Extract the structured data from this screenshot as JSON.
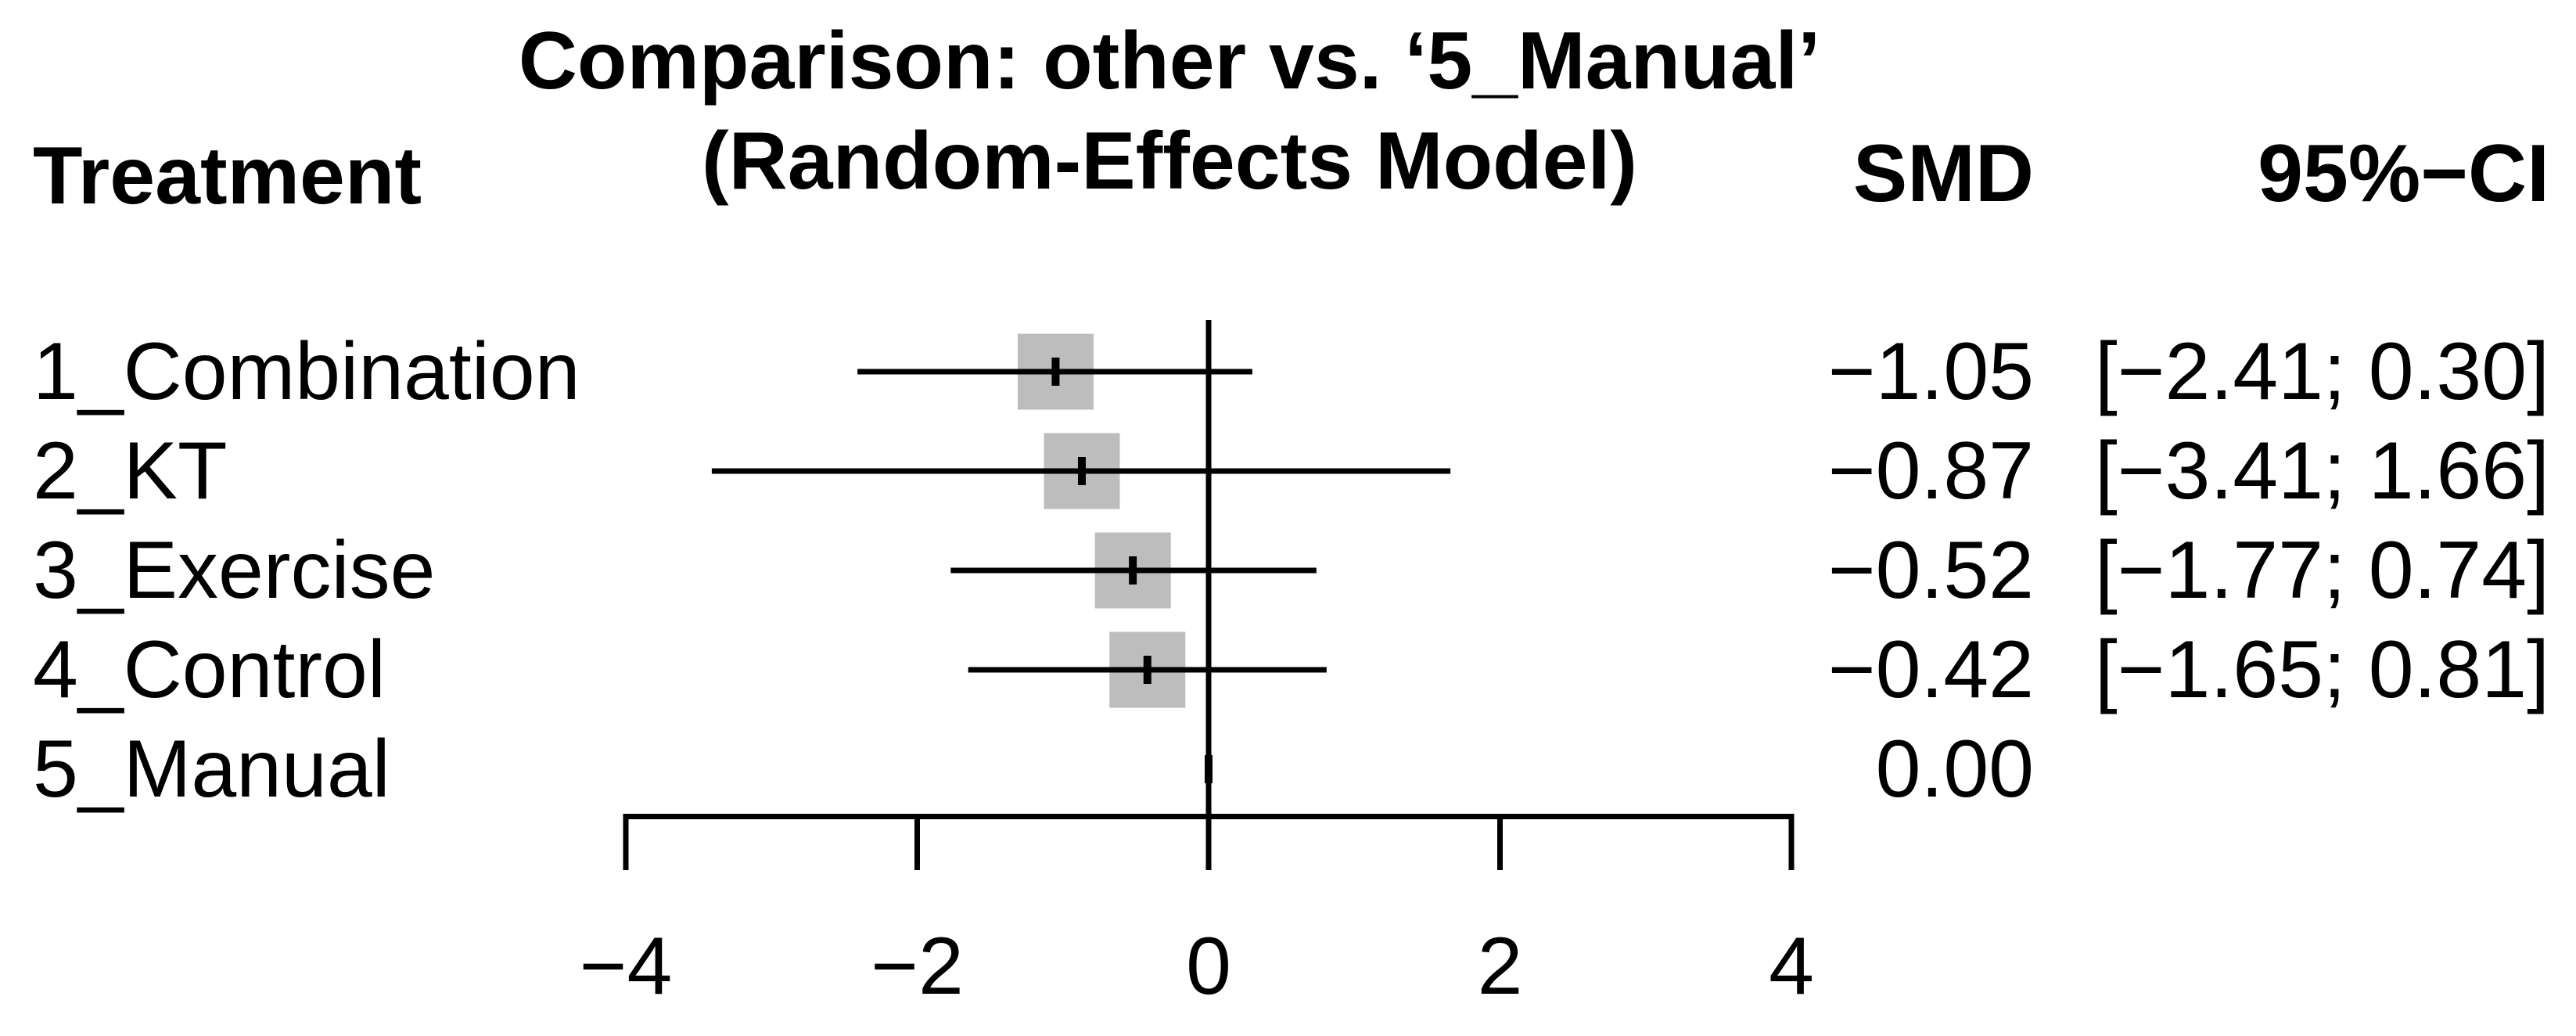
{
  "title": {
    "line1": "Comparison: other vs. ‘5_Manual’",
    "line2": "(Random-Effects Model)"
  },
  "columns": {
    "treatment": "Treatment",
    "smd": "SMD",
    "ci": "95%−CI"
  },
  "rows": [
    {
      "treatment": "1_Combination",
      "smd": "−1.05",
      "ci": "[−2.41; 0.30]"
    },
    {
      "treatment": "2_KT",
      "smd": "−0.87",
      "ci": "[−3.41; 1.66]"
    },
    {
      "treatment": "3_Exercise",
      "smd": "−0.52",
      "ci": "[−1.77; 0.74]"
    },
    {
      "treatment": "4_Control",
      "smd": "−0.42",
      "ci": "[−1.65; 0.81]"
    },
    {
      "treatment": "5_Manual",
      "smd": "0.00",
      "ci": ""
    }
  ],
  "axis": {
    "tick_labels": [
      "−4",
      "−2",
      "0",
      "2",
      "4"
    ]
  },
  "colors": {
    "square_fill": "#bdbdbd",
    "line": "#000000"
  },
  "chart_data": {
    "type": "scatter",
    "variant": "forest-plot",
    "title": "Comparison: other vs. ‘5_Manual’ (Random-Effects Model)",
    "effect_measure": "SMD",
    "model": "Random-Effects Model",
    "reference_treatment": "5_Manual",
    "reference_line_x": 0,
    "xlim": [
      -4,
      4
    ],
    "x_ticks": [
      -4,
      -2,
      0,
      2,
      4
    ],
    "grid": false,
    "legend": false,
    "categories": [
      "1_Combination",
      "2_KT",
      "3_Exercise",
      "4_Control",
      "5_Manual"
    ],
    "estimates": [
      -1.05,
      -0.87,
      -0.52,
      -0.42,
      0.0
    ],
    "ci_lower": [
      -2.41,
      -3.41,
      -1.77,
      -1.65,
      null
    ],
    "ci_upper": [
      0.3,
      1.66,
      0.74,
      0.81,
      null
    ]
  }
}
